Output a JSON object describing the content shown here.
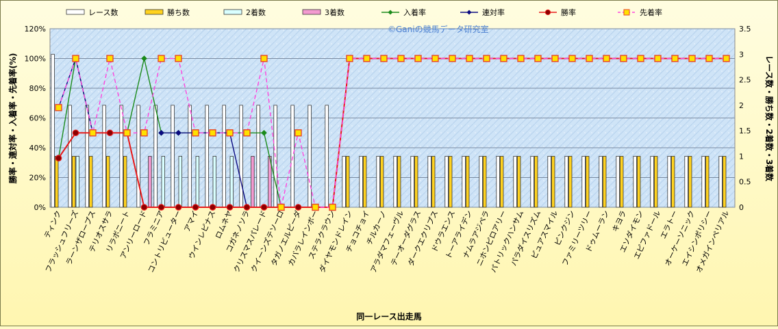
{
  "chart_data": {
    "type": "bar",
    "watermark": "©Ganiの競馬データ研究室",
    "xlabel": "同一レース出走馬",
    "ylabel_left": "勝率・連対率・入着率・先着率(%)",
    "ylabel_right": "レース数・勝ち数・2着数・3着数",
    "ylim_left": [
      0,
      120
    ],
    "yticks_left": [
      "0%",
      "20%",
      "40%",
      "60%",
      "80%",
      "100%",
      "120%"
    ],
    "ylim_right": [
      0,
      3.5
    ],
    "yticks_right": [
      "0",
      "0.5",
      "1",
      "1.5",
      "2",
      "2.5",
      "3",
      "3.5"
    ],
    "grid": true,
    "legend_position": "top",
    "categories": [
      "ティンク",
      "フラッシュフリーズ",
      "ラーンザロープス",
      "テリオスサラ",
      "リラボニート",
      "アンリーロード",
      "フラミニア",
      "コントリビューター",
      "アマイ",
      "ウインレピナス",
      "ロムネヤ",
      "コガネノソラ",
      "クリスマスパレード",
      "クイーンズテソーロ",
      "タガノエルピーダ",
      "カバラレインボー",
      "ステラクラウン",
      "ダイヤモンドレイン",
      "チョコチョイ",
      "チルカーノ",
      "アラダマフェーヴル",
      "テーオーダグラス",
      "ダークエクリプス",
      "ドウラエンス",
      "トーアライデン",
      "ナムラアジペラ",
      "ニホンピロアリー",
      "パトリックハンサム",
      "パラダイスリズム",
      "ピュアスマイル",
      "ピンクジン",
      "ファミリーツリー",
      "ドゥムーラン",
      "キヨラ",
      "エソダイモン",
      "エピファドール",
      "エラトー",
      "オーケーソニック",
      "エイシンポリシー",
      "オメガインペリアル"
    ],
    "series": [
      {
        "name": "レース数",
        "kind": "bar",
        "axis": "right",
        "color": "#ffffff",
        "values": [
          3,
          2,
          2,
          2,
          2,
          2,
          2,
          2,
          2,
          2,
          2,
          2,
          2,
          2,
          2,
          2,
          2,
          1,
          1,
          1,
          1,
          1,
          1,
          1,
          1,
          1,
          1,
          1,
          1,
          1,
          1,
          1,
          1,
          1,
          1,
          1,
          1,
          1,
          1,
          1
        ]
      },
      {
        "name": "勝ち数",
        "kind": "bar",
        "axis": "right",
        "color": "#ffd21f",
        "values": [
          1,
          1,
          1,
          1,
          1,
          0,
          0,
          0,
          0,
          0,
          0,
          0,
          0,
          0,
          0,
          0,
          0,
          1,
          1,
          1,
          1,
          1,
          1,
          1,
          1,
          1,
          1,
          1,
          1,
          1,
          1,
          1,
          1,
          1,
          1,
          1,
          1,
          1,
          1,
          1
        ]
      },
      {
        "name": "2着数",
        "kind": "bar",
        "axis": "right",
        "color": "#d9ffff",
        "values": [
          0,
          1,
          0,
          0,
          0,
          0,
          1,
          1,
          1,
          1,
          1,
          0,
          0,
          0,
          0,
          0,
          0,
          0,
          0,
          0,
          0,
          0,
          0,
          0,
          0,
          0,
          0,
          0,
          0,
          0,
          0,
          0,
          0,
          0,
          0,
          0,
          0,
          0,
          0,
          0
        ]
      },
      {
        "name": "3着数",
        "kind": "bar",
        "axis": "right",
        "color": "#f39ad0",
        "values": [
          0,
          0,
          0,
          0,
          0,
          1,
          0,
          0,
          0,
          0,
          0,
          1,
          1,
          0,
          0,
          0,
          0,
          0,
          0,
          0,
          0,
          0,
          0,
          0,
          0,
          0,
          0,
          0,
          0,
          0,
          0,
          0,
          0,
          0,
          0,
          0,
          0,
          0,
          0,
          0
        ]
      },
      {
        "name": "入着率",
        "kind": "line",
        "axis": "left",
        "color": "#1a8a1a",
        "marker": "diamond",
        "dashed": false,
        "values": [
          33,
          100,
          50,
          50,
          50,
          100,
          50,
          50,
          50,
          50,
          50,
          50,
          50,
          0,
          null,
          null,
          null,
          100,
          100,
          100,
          100,
          100,
          100,
          100,
          100,
          100,
          100,
          100,
          100,
          100,
          100,
          100,
          100,
          100,
          100,
          100,
          100,
          100,
          100,
          100
        ]
      },
      {
        "name": "連対率",
        "kind": "line",
        "axis": "left",
        "color": "#0a0a80",
        "marker": "diamond",
        "dashed": false,
        "values": [
          67,
          100,
          50,
          50,
          50,
          null,
          50,
          50,
          50,
          50,
          50,
          0,
          0,
          null,
          null,
          null,
          null,
          100,
          100,
          100,
          100,
          100,
          100,
          100,
          100,
          100,
          100,
          100,
          100,
          100,
          100,
          100,
          100,
          100,
          100,
          100,
          100,
          100,
          100,
          100
        ]
      },
      {
        "name": "勝率",
        "kind": "line",
        "axis": "left",
        "color": "#e81818",
        "marker": "circle",
        "dashed": false,
        "values": [
          33,
          50,
          50,
          50,
          50,
          0,
          0,
          0,
          0,
          0,
          0,
          0,
          0,
          0,
          0,
          0,
          0,
          100,
          100,
          100,
          100,
          100,
          100,
          100,
          100,
          100,
          100,
          100,
          100,
          100,
          100,
          100,
          100,
          100,
          100,
          100,
          100,
          100,
          100,
          100
        ]
      },
      {
        "name": "先着率",
        "kind": "line",
        "axis": "left",
        "color": "#ff44dd",
        "marker": "square",
        "dashed": true,
        "values": [
          67,
          100,
          50,
          100,
          50,
          50,
          100,
          100,
          50,
          50,
          50,
          50,
          100,
          0,
          50,
          0,
          0,
          100,
          100,
          100,
          100,
          100,
          100,
          100,
          100,
          100,
          100,
          100,
          100,
          100,
          100,
          100,
          100,
          100,
          100,
          100,
          100,
          100,
          100,
          100
        ]
      }
    ]
  }
}
